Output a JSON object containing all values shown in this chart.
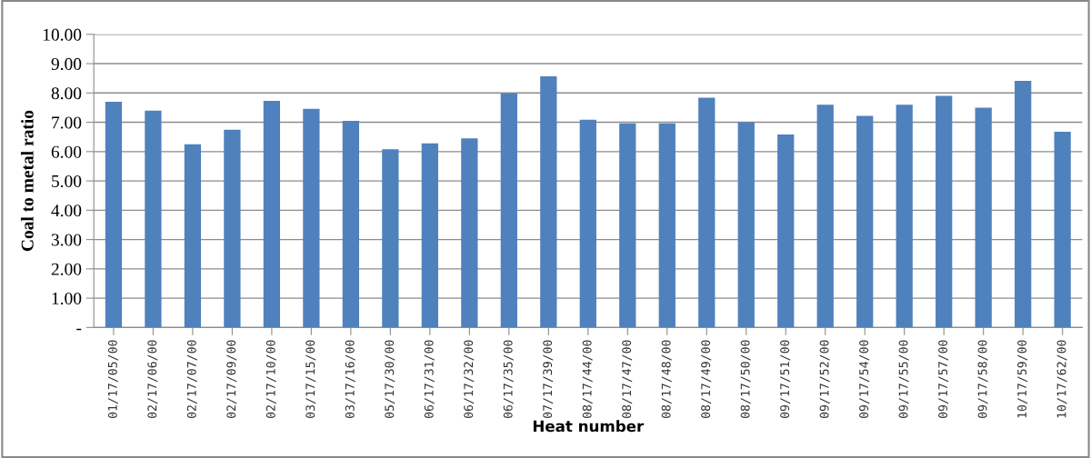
{
  "chart_data": {
    "type": "bar",
    "xlabel": "Heat number",
    "ylabel": "Coal to metal ratio",
    "categories": [
      "01/17/05/00",
      "02/17/06/00",
      "02/17/07/00",
      "02/17/09/00",
      "02/17/10/00",
      "03/17/15/00",
      "03/17/16/00",
      "05/17/30/00",
      "06/17/31/00",
      "06/17/32/00",
      "06/17/35/00",
      "07/17/39/00",
      "08/17/44/00",
      "08/17/47/00",
      "08/17/48/00",
      "08/17/49/00",
      "08/17/50/00",
      "09/17/51/00",
      "09/17/52/00",
      "09/17/54/00",
      "09/17/55/00",
      "09/17/57/00",
      "09/17/58/00",
      "10/17/59/00",
      "10/17/62/00"
    ],
    "values": [
      7.7,
      7.4,
      6.25,
      6.75,
      7.73,
      7.46,
      7.05,
      6.08,
      6.28,
      6.45,
      7.99,
      8.57,
      7.09,
      6.96,
      6.96,
      7.84,
      7.0,
      6.58,
      7.6,
      7.22,
      7.6,
      7.9,
      7.5,
      8.41,
      6.68
    ],
    "color": "#4f81bd",
    "ylim": [
      0,
      10
    ],
    "yticks": [
      {
        "value": 0,
        "label": "-"
      },
      {
        "value": 1,
        "label": "1.00"
      },
      {
        "value": 2,
        "label": "2.00"
      },
      {
        "value": 3,
        "label": "3.00"
      },
      {
        "value": 4,
        "label": "4.00"
      },
      {
        "value": 5,
        "label": "5.00"
      },
      {
        "value": 6,
        "label": "6.00"
      },
      {
        "value": 7,
        "label": "7.00"
      },
      {
        "value": 8,
        "label": "8.00"
      },
      {
        "value": 9,
        "label": "9.00"
      },
      {
        "value": 10,
        "label": "10.00"
      }
    ],
    "grid": "y"
  }
}
